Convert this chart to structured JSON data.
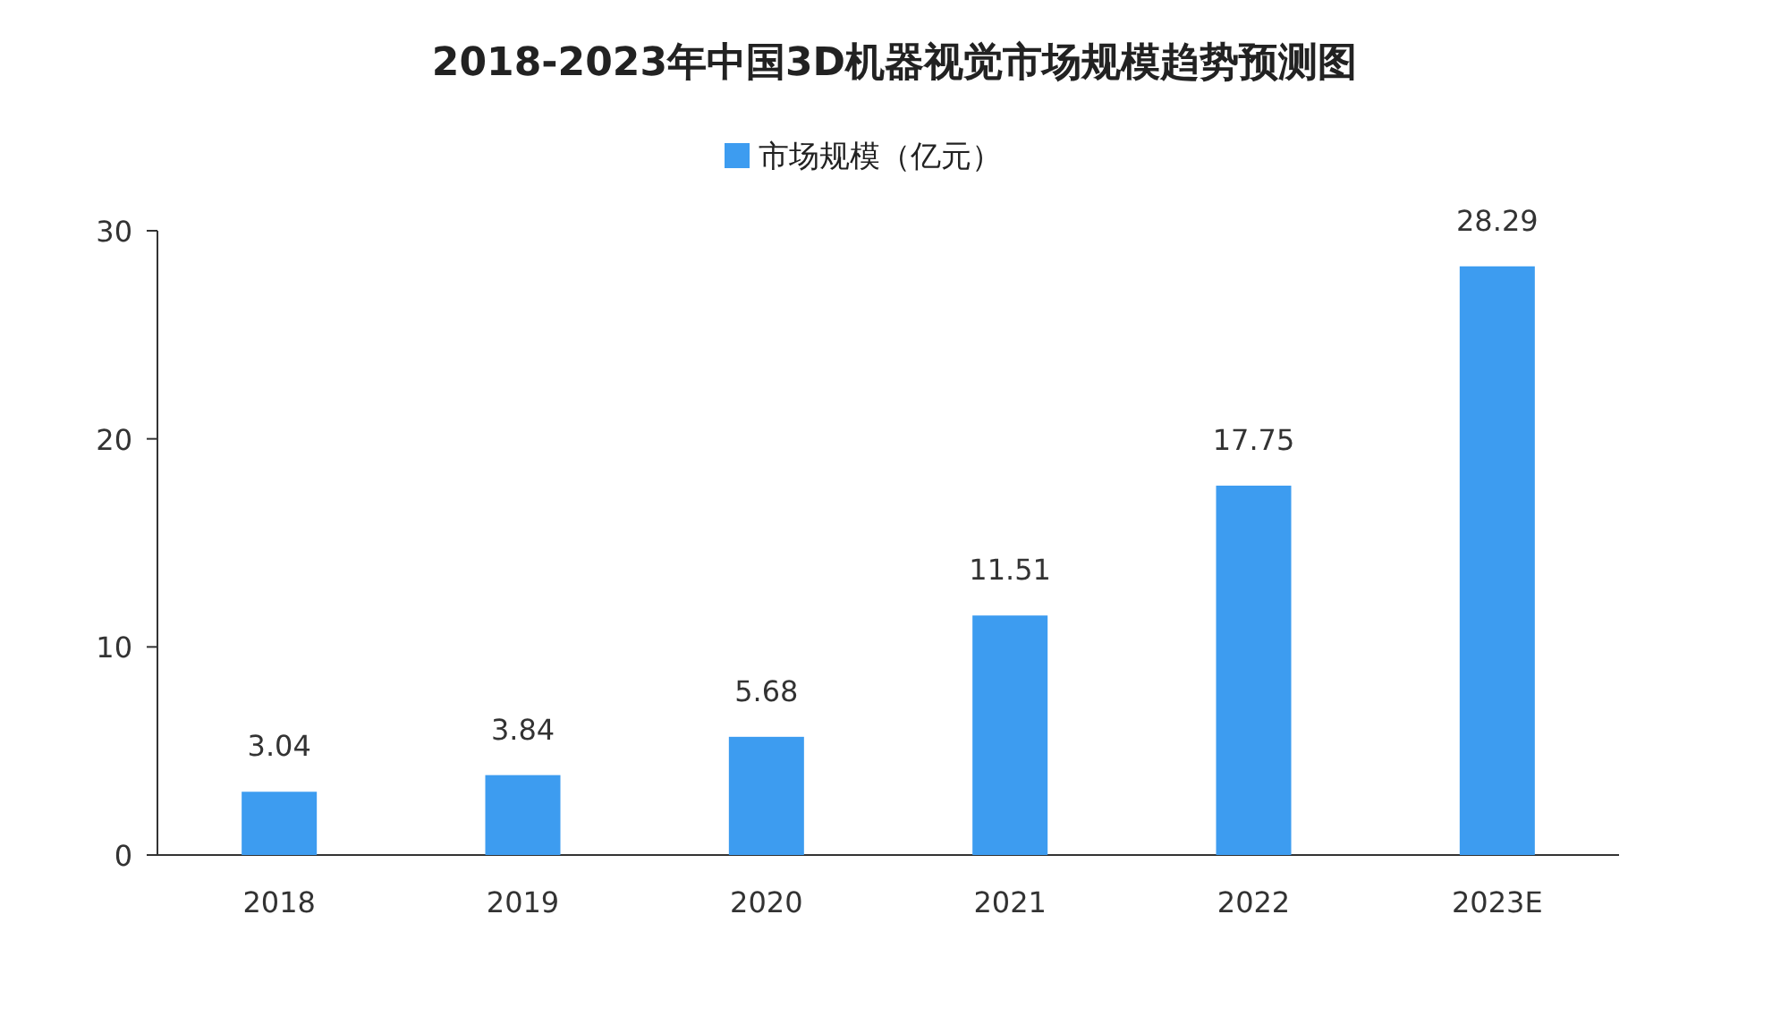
{
  "chart_data": {
    "type": "bar",
    "title": "2018-2023年中国3D机器视觉市场规模趋势预测图",
    "categories": [
      "2018",
      "2019",
      "2020",
      "2021",
      "2022",
      "2023E"
    ],
    "series": [
      {
        "name": "市场规模（亿元）",
        "color": "#3d9cf0",
        "values": [
          3.04,
          3.84,
          5.68,
          11.51,
          17.75,
          28.29
        ]
      }
    ],
    "ylim": [
      0,
      30
    ],
    "yticks": [
      0,
      10,
      20,
      30
    ],
    "grid": false,
    "legend": "top",
    "data_labels": true
  }
}
